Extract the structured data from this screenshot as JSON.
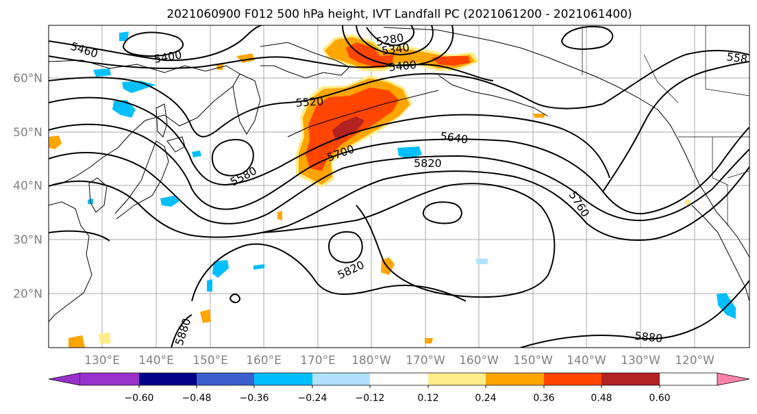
{
  "title": "2021060900 F012 500 hPa height, IVT Landfall PC (2021061200 - 2021061400)",
  "colors": {
    "neg_060": "#9932cc",
    "neg_048": "#00008b",
    "neg_036": "#3a5fcd",
    "neg_024": "#00bfff",
    "neg_012": "#b0e2ff",
    "neutral": "#ffffff",
    "pos_012": "#ffec8b",
    "pos_024": "#ffa500",
    "pos_036": "#ff4500",
    "pos_048": "#b22222",
    "pos_060": "#ff82ab",
    "contour": "#000000",
    "grid": "#a8a8a8",
    "axis_label": "#808080"
  },
  "map": {
    "lon_labels": [
      "130°E",
      "140°E",
      "150°E",
      "160°E",
      "170°E",
      "180°W",
      "170°W",
      "160°W",
      "150°W",
      "140°W",
      "130°W",
      "120°W"
    ],
    "lat_labels": [
      "20°N",
      "30°N",
      "40°N",
      "50°N",
      "60°N"
    ]
  },
  "contour_labels": [
    "5460",
    "5400",
    "5280",
    "5340",
    "5400",
    "5520",
    "5640",
    "5700",
    "5820",
    "5580",
    "5760",
    "5820",
    "5880",
    "5880",
    "558"
  ],
  "colorbar": {
    "tick_labels": [
      "−0.60",
      "−0.48",
      "−0.36",
      "−0.24",
      "−0.12",
      "0.12",
      "0.24",
      "0.36",
      "0.48",
      "0.60"
    ]
  }
}
